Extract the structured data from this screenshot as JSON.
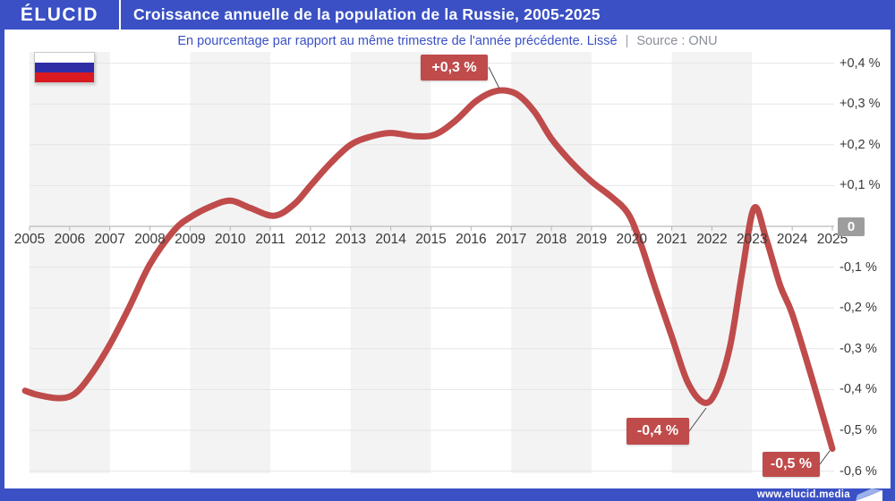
{
  "header": {
    "logo": "ÉLUCID",
    "title": "Croissance annuelle de la population de la Russie, 2005-2025"
  },
  "subtitle": {
    "main": "En pourcentage par rapport au même trimestre de l'année précédente. Lissé",
    "separator": "|",
    "source": "Source : ONU"
  },
  "footer": {
    "url": "www.elucid.media"
  },
  "colors": {
    "brand_blue": "#3a50c4",
    "line_red": "#bf4b4b",
    "band_gray": "#f3f3f4",
    "grid_gray": "#e5e5e5",
    "zero_line_gray": "#c6c6c6",
    "tick_gray": "#b5b5b5",
    "axis_text": "#3a3a3a",
    "badge_gray": "#9d9d9d",
    "connector_gray": "#4a4a4a",
    "flag_white": "#ffffff",
    "flag_blue": "#2f2da5",
    "flag_red": "#da1a21",
    "footer_logo_light_blue": "#9db1ea"
  },
  "chart_data": {
    "type": "line",
    "title": "Croissance annuelle de la population de la Russie, 2005-2025",
    "subtitle": "En pourcentage par rapport au même trimestre de l'année précédente. Lissé",
    "source": "Source : ONU",
    "unit": "%",
    "xlim": [
      2004.89,
      2025
    ],
    "ylim": [
      -0.6,
      0.4
    ],
    "grid": "horizontal",
    "x_ticks": [
      "2005",
      "2006",
      "2007",
      "2008",
      "2009",
      "2010",
      "2011",
      "2012",
      "2013",
      "2014",
      "2015",
      "2016",
      "2017",
      "2018",
      "2019",
      "2020",
      "2021",
      "2022",
      "2023",
      "2024",
      "2025"
    ],
    "y_ticks": [
      {
        "label": "+0,4 %",
        "value": 0.4
      },
      {
        "label": "+0,3 %",
        "value": 0.3
      },
      {
        "label": "+0,2 %",
        "value": 0.2
      },
      {
        "label": "+0,1 %",
        "value": 0.1
      },
      {
        "label": "0",
        "value": 0,
        "badge": true
      },
      {
        "label": "-0,1 %",
        "value": -0.1
      },
      {
        "label": "-0,2 %",
        "value": -0.2
      },
      {
        "label": "-0,3 %",
        "value": -0.3
      },
      {
        "label": "-0,4 %",
        "value": -0.4
      },
      {
        "label": "-0,5 %",
        "value": -0.5
      },
      {
        "label": "-0,6 %",
        "value": -0.6
      }
    ],
    "series": [
      {
        "name": "Croissance annuelle de la population de la Russie",
        "color": "#bf4b4b",
        "points": [
          [
            2004.89,
            -0.403
          ],
          [
            2005.2,
            -0.413
          ],
          [
            2005.7,
            -0.421
          ],
          [
            2006.1,
            -0.412
          ],
          [
            2006.5,
            -0.368
          ],
          [
            2007.0,
            -0.29
          ],
          [
            2007.5,
            -0.195
          ],
          [
            2008.0,
            -0.093
          ],
          [
            2008.6,
            -0.01
          ],
          [
            2009.0,
            0.022
          ],
          [
            2009.5,
            0.048
          ],
          [
            2010.0,
            0.063
          ],
          [
            2010.5,
            0.045
          ],
          [
            2011.1,
            0.026
          ],
          [
            2011.6,
            0.055
          ],
          [
            2012.0,
            0.1
          ],
          [
            2012.5,
            0.155
          ],
          [
            2013.0,
            0.2
          ],
          [
            2013.5,
            0.22
          ],
          [
            2014.0,
            0.229
          ],
          [
            2014.6,
            0.221
          ],
          [
            2015.1,
            0.225
          ],
          [
            2015.6,
            0.258
          ],
          [
            2016.1,
            0.305
          ],
          [
            2016.5,
            0.328
          ],
          [
            2016.85,
            0.333
          ],
          [
            2017.2,
            0.32
          ],
          [
            2017.6,
            0.278
          ],
          [
            2018.0,
            0.215
          ],
          [
            2018.5,
            0.157
          ],
          [
            2019.0,
            0.11
          ],
          [
            2019.5,
            0.072
          ],
          [
            2019.9,
            0.033
          ],
          [
            2020.2,
            -0.035
          ],
          [
            2020.6,
            -0.155
          ],
          [
            2021.0,
            -0.27
          ],
          [
            2021.4,
            -0.383
          ],
          [
            2021.8,
            -0.432
          ],
          [
            2022.1,
            -0.405
          ],
          [
            2022.45,
            -0.295
          ],
          [
            2022.75,
            -0.115
          ],
          [
            2023.05,
            0.045
          ],
          [
            2023.35,
            -0.03
          ],
          [
            2023.7,
            -0.145
          ],
          [
            2024.0,
            -0.215
          ],
          [
            2024.5,
            -0.375
          ],
          [
            2025.0,
            -0.545
          ]
        ]
      }
    ],
    "annotations": [
      {
        "label": "+0,3 %",
        "year": 2016.85,
        "value": 0.333
      },
      {
        "label": "-0,4 %",
        "year": 2021.8,
        "value": -0.432
      },
      {
        "label": "-0,5 %",
        "year": 2025.0,
        "value": -0.545
      }
    ],
    "shaded_year_bands": [
      [
        2005,
        2007
      ],
      [
        2009,
        2011
      ],
      [
        2013,
        2015
      ],
      [
        2017,
        2019
      ],
      [
        2021,
        2023
      ]
    ]
  },
  "flag": {
    "country": "russia",
    "stripes": [
      "#ffffff",
      "#2f2da5",
      "#da1a21"
    ]
  }
}
